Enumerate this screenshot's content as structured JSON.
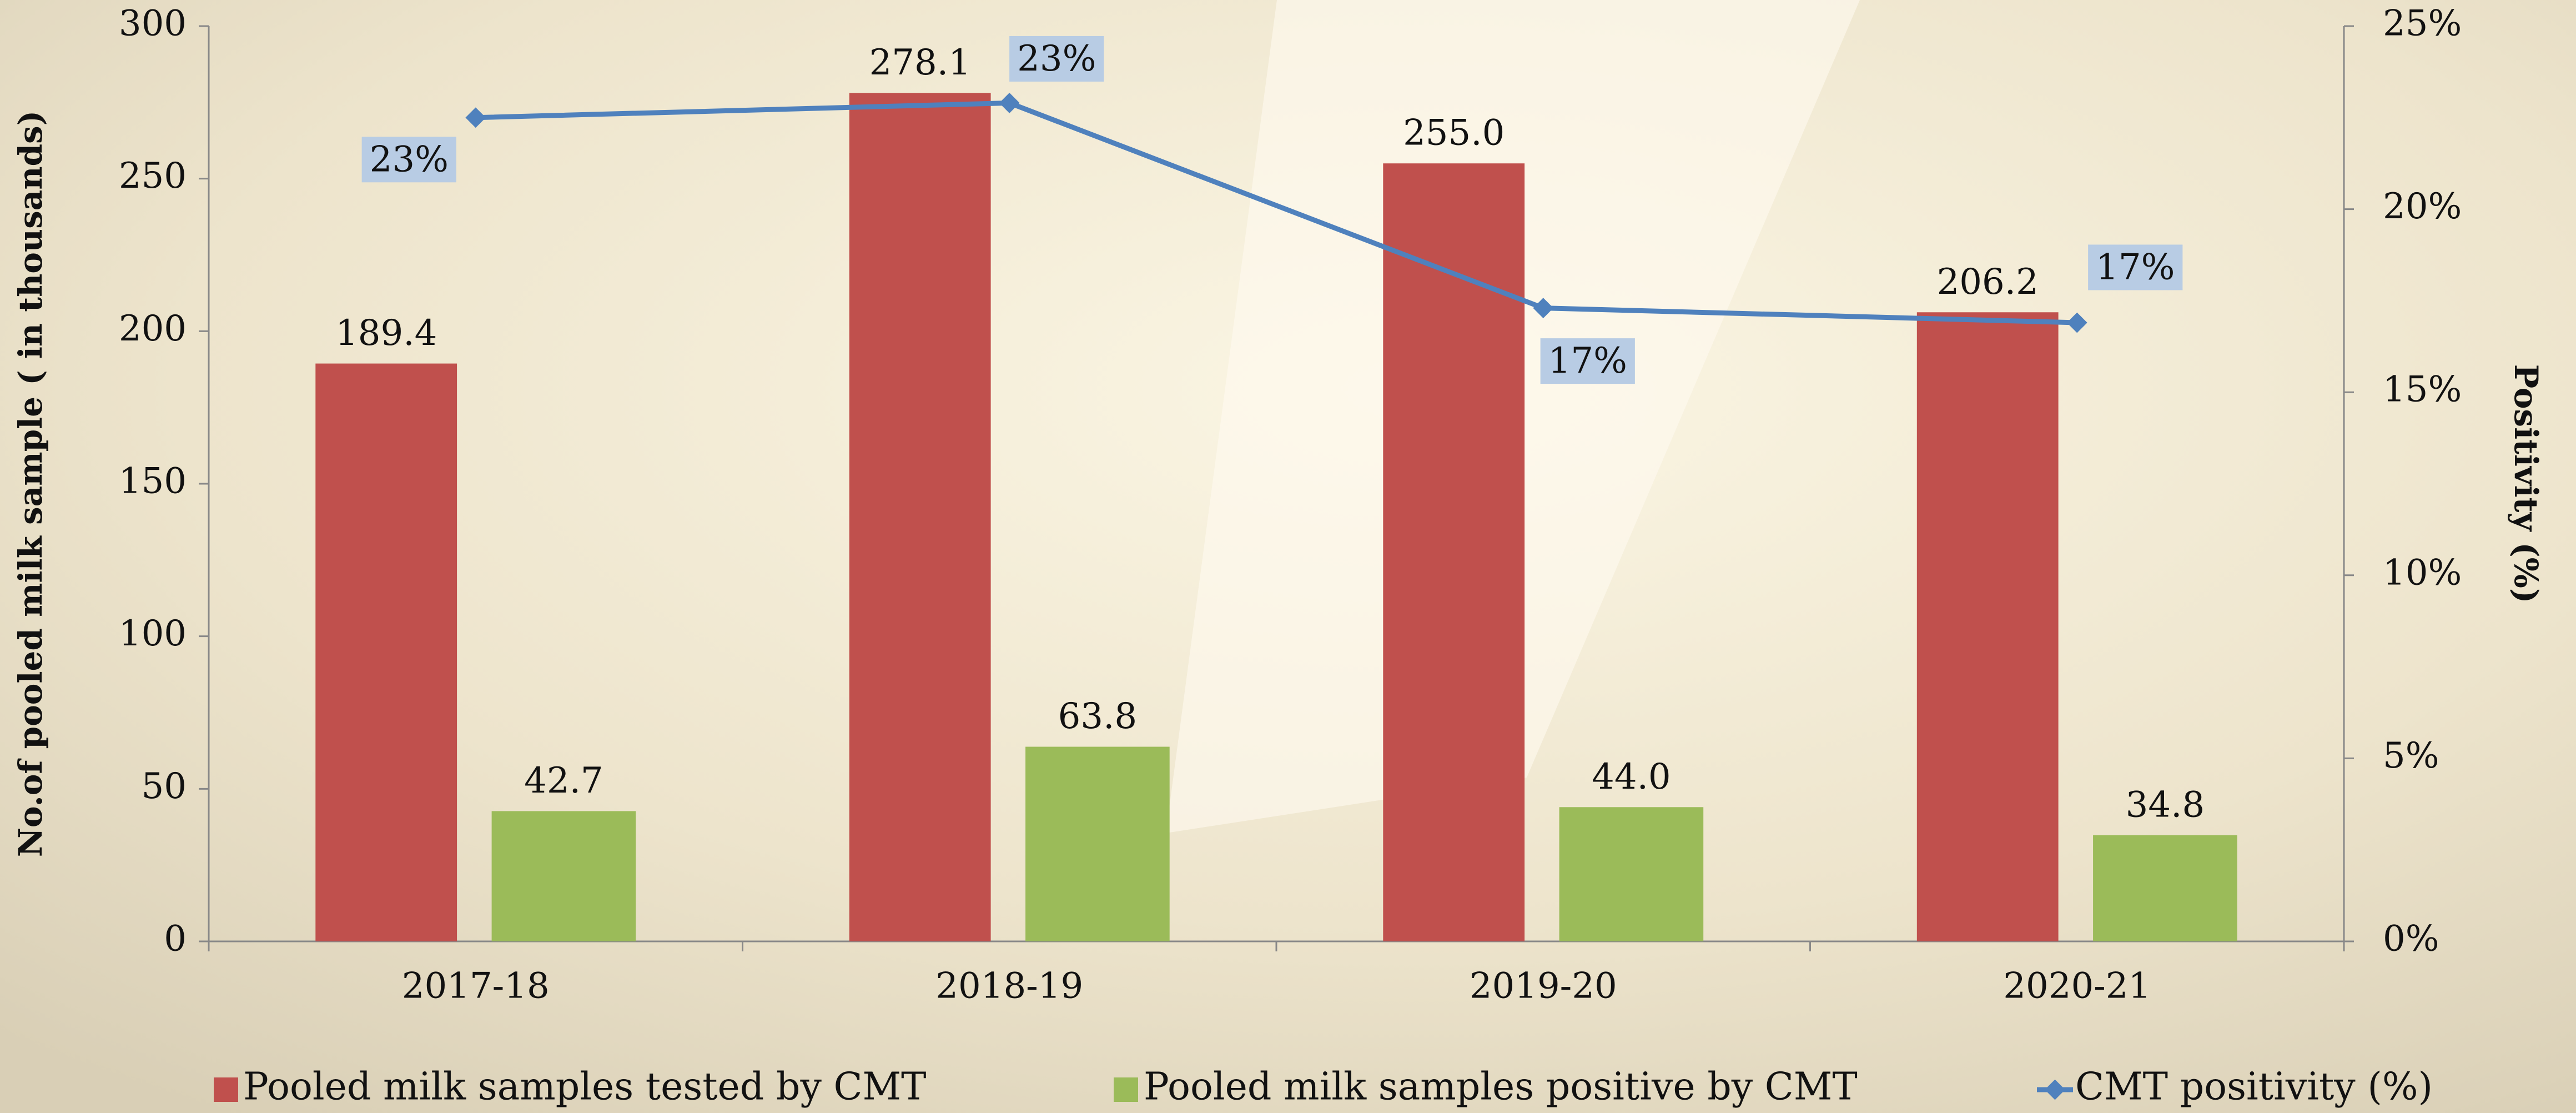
{
  "chart_data": {
    "type": "bar",
    "categories": [
      "2017-18",
      "2018-19",
      "2019-20",
      "2020-21"
    ],
    "y_label": "No.of pooled milk sample ( in thousands)",
    "y2_label": "Positivity (%)",
    "ylim": [
      0,
      300
    ],
    "yticks": [
      0,
      50,
      100,
      150,
      200,
      250,
      300
    ],
    "y2lim": [
      0,
      25
    ],
    "y2ticks": [
      {
        "value": 0,
        "label": "0%"
      },
      {
        "value": 5,
        "label": "5%"
      },
      {
        "value": 10,
        "label": "10%"
      },
      {
        "value": 15,
        "label": "15%"
      },
      {
        "value": 20,
        "label": "20%"
      },
      {
        "value": 25,
        "label": "25%"
      }
    ],
    "series": [
      {
        "name": "Pooled milk samples tested by CMT",
        "type": "bar",
        "color": "#c0504d",
        "values": [
          189.4,
          278.1,
          255.0,
          206.2
        ],
        "value_labels": [
          "189.4",
          "278.1",
          "255.0",
          "206.2"
        ]
      },
      {
        "name": "Pooled milk samples positive by CMT",
        "type": "bar",
        "color": "#9bbb59",
        "values": [
          42.7,
          63.8,
          44.0,
          34.8
        ],
        "value_labels": [
          "42.7",
          "63.8",
          "44.0",
          "34.8"
        ]
      },
      {
        "name": "CMT positivity (%)",
        "type": "line",
        "axis": "y2",
        "color": "#4f81bd",
        "values": [
          22.5,
          22.9,
          17.3,
          16.9
        ],
        "value_labels": [
          "23%",
          "23%",
          "17%",
          "17%"
        ]
      }
    ],
    "legend": "bottom"
  }
}
